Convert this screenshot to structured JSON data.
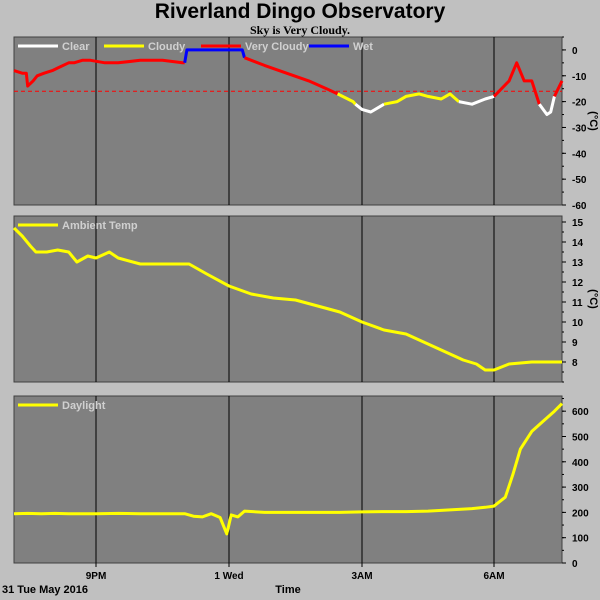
{
  "header": {
    "title": "Riverland Dingo Observatory",
    "subtitle": "Sky is Very Cloudy."
  },
  "footer": {
    "date": "31 Tue May 2016",
    "xlabel": "Time"
  },
  "colors": {
    "panel_bg": "#808080",
    "clear": "#ffffff",
    "cloudy": "#ffff00",
    "very_cloudy": "#ff0000",
    "wet": "#0000ff",
    "threshold": "#ff0000",
    "grid": "#000000"
  },
  "x_ticks": [
    "9PM",
    "1 Wed",
    "3AM",
    "6AM"
  ],
  "chart_data": [
    {
      "type": "line",
      "name": "sky",
      "ylim": [
        -60,
        5
      ],
      "yticks": [
        0,
        -10,
        -20,
        -30,
        -40,
        -50,
        -60
      ],
      "unit": "(°C)",
      "legend": [
        "Clear",
        "Cloudy",
        "Very Cloudy",
        "Wet"
      ],
      "threshold": -16,
      "x_range": [
        18.0,
        30.9
      ],
      "segments": [
        {
          "state": "Very Cloudy",
          "points": [
            [
              18.0,
              -8
            ],
            [
              18.3,
              -9
            ],
            [
              18.45,
              -9
            ],
            [
              18.5,
              -14
            ],
            [
              18.7,
              -12
            ],
            [
              18.85,
              -10
            ],
            [
              19.1,
              -9
            ],
            [
              19.4,
              -8
            ],
            [
              19.6,
              -7
            ],
            [
              20.0,
              -5
            ],
            [
              20.2,
              -5
            ],
            [
              20.5,
              -4
            ],
            [
              20.8,
              -4
            ],
            [
              21.2,
              -5
            ],
            [
              21.5,
              -5
            ],
            [
              22.0,
              -4
            ],
            [
              22.5,
              -4
            ],
            [
              22.95,
              -5
            ],
            [
              23.0,
              -5
            ]
          ]
        },
        {
          "state": "Wet",
          "points": [
            [
              23.0,
              -5
            ],
            [
              23.05,
              0
            ],
            [
              24.3,
              0
            ],
            [
              24.35,
              -3
            ]
          ]
        },
        {
          "state": "Very Cloudy",
          "points": [
            [
              24.35,
              -3
            ],
            [
              24.8,
              -6
            ],
            [
              25.3,
              -9
            ],
            [
              25.8,
              -12
            ],
            [
              26.2,
              -15
            ],
            [
              26.45,
              -17
            ]
          ]
        },
        {
          "state": "Cloudy",
          "points": [
            [
              26.45,
              -17
            ],
            [
              26.8,
              -20
            ],
            [
              26.85,
              -21
            ]
          ]
        },
        {
          "state": "Clear",
          "points": [
            [
              26.85,
              -21
            ],
            [
              27.0,
              -23
            ],
            [
              27.2,
              -24
            ],
            [
              27.4,
              -22
            ],
            [
              27.5,
              -21
            ]
          ]
        },
        {
          "state": "Cloudy",
          "points": [
            [
              27.5,
              -21
            ],
            [
              27.8,
              -20
            ],
            [
              28.0,
              -18
            ],
            [
              28.3,
              -17
            ],
            [
              28.5,
              -18
            ],
            [
              28.8,
              -19
            ],
            [
              29.0,
              -17
            ],
            [
              29.2,
              -20
            ]
          ]
        },
        {
          "state": "Clear",
          "points": [
            [
              29.2,
              -20
            ],
            [
              29.5,
              -21
            ],
            [
              29.8,
              -19
            ],
            [
              30.0,
              -18
            ]
          ]
        },
        {
          "state": "Very Cloudy",
          "points": [
            [
              30.0,
              -18
            ],
            [
              30.2,
              -12
            ],
            [
              30.3,
              -5
            ],
            [
              30.4,
              -12
            ],
            [
              30.5,
              -12
            ],
            [
              30.6,
              -21
            ]
          ]
        },
        {
          "state": "Clear",
          "points": [
            [
              30.6,
              -21
            ],
            [
              30.7,
              -25
            ],
            [
              30.75,
              -24
            ],
            [
              30.8,
              -18
            ]
          ]
        },
        {
          "state": "Very Cloudy",
          "points": [
            [
              30.8,
              -18
            ],
            [
              30.9,
              -12
            ]
          ]
        }
      ]
    },
    {
      "type": "line",
      "name": "temp",
      "ylim": [
        7,
        15.3
      ],
      "yticks": [
        15,
        14,
        13,
        12,
        11,
        10,
        9,
        8
      ],
      "legend": [
        "Ambient Temp"
      ],
      "series": [
        {
          "name": "Ambient Temp",
          "points": [
            [
              18.0,
              14.7
            ],
            [
              18.3,
              14.3
            ],
            [
              18.6,
              13.8
            ],
            [
              18.8,
              13.5
            ],
            [
              19.2,
              13.5
            ],
            [
              19.6,
              13.6
            ],
            [
              20.0,
              13.5
            ],
            [
              20.3,
              13.0
            ],
            [
              20.7,
              13.3
            ],
            [
              21.0,
              13.2
            ],
            [
              21.3,
              13.5
            ],
            [
              21.5,
              13.2
            ],
            [
              22.0,
              12.9
            ],
            [
              22.6,
              12.9
            ],
            [
              23.1,
              12.9
            ],
            [
              23.5,
              12.4
            ],
            [
              24.0,
              11.8
            ],
            [
              24.5,
              11.4
            ],
            [
              25.0,
              11.2
            ],
            [
              25.5,
              11.1
            ],
            [
              26.0,
              10.8
            ],
            [
              26.5,
              10.5
            ],
            [
              27.0,
              10.0
            ],
            [
              27.5,
              9.6
            ],
            [
              28.0,
              9.4
            ],
            [
              28.5,
              8.9
            ],
            [
              29.0,
              8.4
            ],
            [
              29.3,
              8.1
            ],
            [
              29.6,
              7.9
            ],
            [
              29.8,
              7.6
            ],
            [
              30.0,
              7.6
            ],
            [
              30.2,
              7.9
            ],
            [
              30.5,
              8.0
            ],
            [
              30.9,
              8.0
            ]
          ]
        }
      ]
    },
    {
      "type": "line",
      "name": "daylight",
      "ylim": [
        0,
        660
      ],
      "yticks": [
        600,
        500,
        400,
        300,
        200,
        100,
        0
      ],
      "legend": [
        "Daylight"
      ],
      "series": [
        {
          "name": "Daylight",
          "points": [
            [
              18.0,
              195
            ],
            [
              18.5,
              196
            ],
            [
              19.0,
              195
            ],
            [
              19.5,
              196
            ],
            [
              20.0,
              195
            ],
            [
              20.5,
              195
            ],
            [
              21.0,
              195
            ],
            [
              21.5,
              196
            ],
            [
              22.0,
              195
            ],
            [
              22.5,
              195
            ],
            [
              23.0,
              195
            ],
            [
              23.2,
              185
            ],
            [
              23.4,
              182
            ],
            [
              23.6,
              195
            ],
            [
              23.8,
              180
            ],
            [
              23.95,
              115
            ],
            [
              24.05,
              190
            ],
            [
              24.2,
              182
            ],
            [
              24.35,
              205
            ],
            [
              24.8,
              200
            ],
            [
              25.5,
              200
            ],
            [
              26.0,
              200
            ],
            [
              26.5,
              200
            ],
            [
              27.0,
              202
            ],
            [
              27.5,
              203
            ],
            [
              28.0,
              203
            ],
            [
              28.5,
              205
            ],
            [
              29.0,
              210
            ],
            [
              29.5,
              215
            ],
            [
              29.8,
              220
            ],
            [
              30.0,
              225
            ],
            [
              30.15,
              260
            ],
            [
              30.25,
              350
            ],
            [
              30.35,
              450
            ],
            [
              30.5,
              520
            ],
            [
              30.65,
              560
            ],
            [
              30.8,
              600
            ],
            [
              30.9,
              630
            ]
          ]
        }
      ]
    }
  ]
}
